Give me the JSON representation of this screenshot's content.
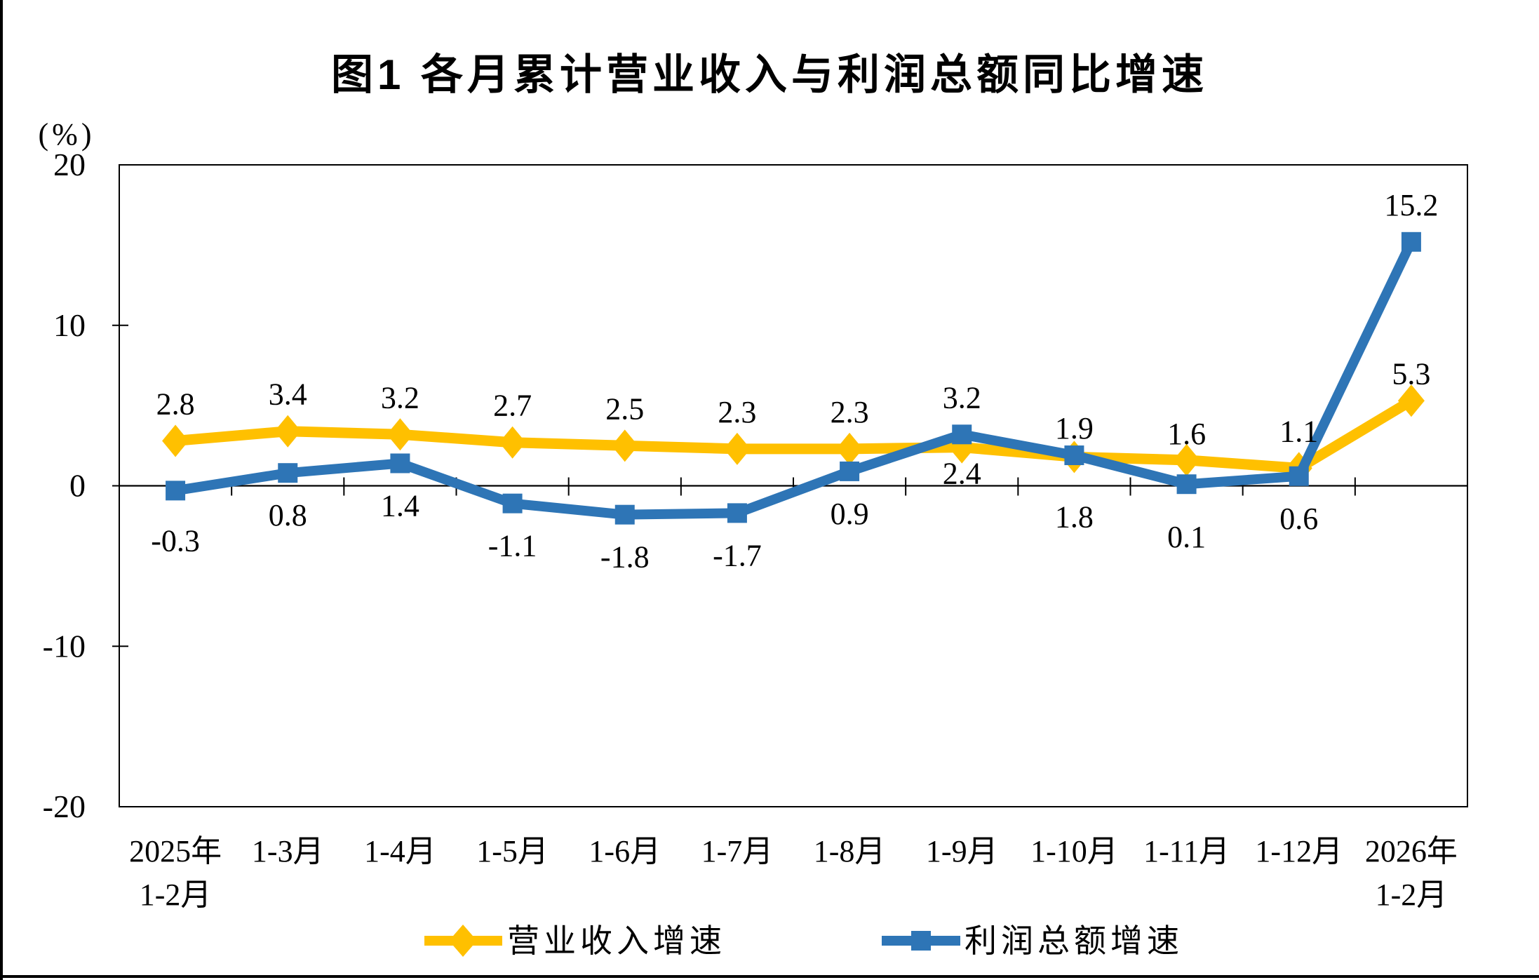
{
  "figure": {
    "background": "#ffffff",
    "frame_color": "#000000"
  },
  "chart_data": {
    "type": "line",
    "title": "图1 各月累计营业收入与利润总额同比增速",
    "unit": "(%)",
    "xlabel": "",
    "ylabel": "(%)",
    "ylim": [
      -20,
      20
    ],
    "y_ticks": [
      20,
      10,
      0,
      -10,
      -20
    ],
    "grid": "off",
    "legend_position": "bottom",
    "categories": [
      [
        "2025年",
        "1-2月"
      ],
      "1-3月",
      "1-4月",
      "1-5月",
      "1-6月",
      "1-7月",
      "1-8月",
      "1-9月",
      "1-10月",
      "1-11月",
      "1-12月",
      [
        "2026年",
        "1-2月"
      ]
    ],
    "series": [
      {
        "name": "营业收入增速",
        "color": "#FFC000",
        "marker": "diamond",
        "values": [
          2.8,
          3.4,
          3.2,
          2.7,
          2.5,
          2.3,
          2.3,
          2.4,
          1.8,
          1.6,
          1.1,
          5.3
        ],
        "label_side": [
          "above",
          "above",
          "above",
          "above",
          "above",
          "above",
          "above",
          "below",
          "below",
          "above",
          "above",
          "above"
        ]
      },
      {
        "name": "利润总额增速",
        "color": "#2E75B6",
        "marker": "square",
        "values": [
          -0.3,
          0.8,
          1.4,
          -1.1,
          -1.8,
          -1.7,
          0.9,
          3.2,
          1.9,
          0.1,
          0.6,
          15.2
        ],
        "label_side": [
          "below",
          "below",
          "below",
          "below",
          "below",
          "below",
          "below",
          "above",
          "above",
          "below",
          "below",
          "above"
        ]
      }
    ]
  }
}
